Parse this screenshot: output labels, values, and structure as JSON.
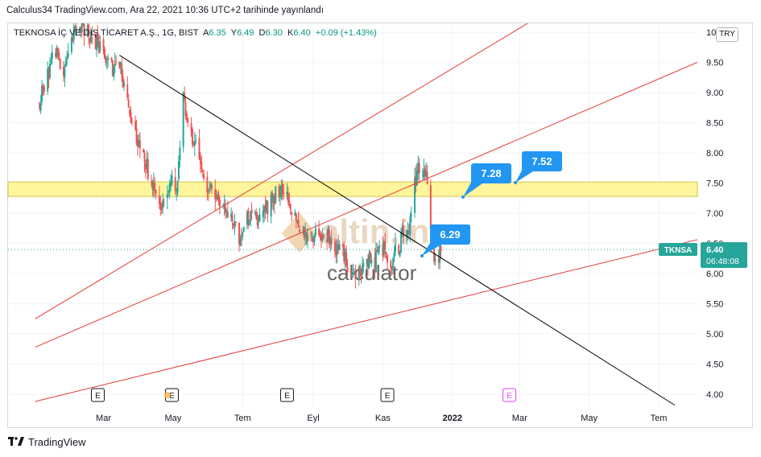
{
  "header": {
    "publish_line": "Calculus34 TradingView.com, Ara 22, 2021 10:36 UTC+2 tarihinde yayınlandı"
  },
  "legend": {
    "symbol": "TEKNOSA İÇ VE DIŞ TİCARET A.Ş., 1G, BIST",
    "open_key": "A",
    "open_val": "6.35",
    "high_key": "Y",
    "high_val": "6.49",
    "low_key": "D",
    "low_val": "6.30",
    "close_key": "K",
    "close_val": "6.40",
    "change": "+0.09 (+1.43%)"
  },
  "currency": "TRY",
  "price_tag": {
    "ticker": "TKNSA",
    "price": "6.40",
    "countdown": "06:48:08"
  },
  "callouts": [
    {
      "label": "7.28",
      "value": 7.28
    },
    {
      "label": "7.52",
      "value": 7.52
    },
    {
      "label": "6.29",
      "value": 6.29
    }
  ],
  "watermark": {
    "top": "altin.in",
    "bottom": "calculator"
  },
  "footer": {
    "brand": "TradingView"
  },
  "colors": {
    "up": "#26a69a",
    "down": "#ef5350",
    "trend_red": "#e53935",
    "trend_black": "#000000",
    "zone_fill": "#fff59d",
    "callout": "#2196f3",
    "price_tag": "#26a69a"
  },
  "chart_data": {
    "type": "candlestick",
    "title": "TEKNOSA İÇ VE DIŞ TİCARET A.Ş., 1G, BIST",
    "x_ticks": [
      "Mar",
      "May",
      "Tem",
      "Eyl",
      "Kas",
      "2022",
      "Mar",
      "May",
      "Tem"
    ],
    "y_ticks": [
      "4.00",
      "4.50",
      "5.00",
      "5.50",
      "6.00",
      "6.50",
      "7.00",
      "7.50",
      "8.00",
      "8.50",
      "9.00",
      "9.50",
      "10"
    ],
    "ylim": [
      3.8,
      10.15
    ],
    "last_price": 6.4,
    "resistance_zone": [
      7.28,
      7.52
    ],
    "event_markers": [
      "E",
      "E",
      "E",
      "E",
      "E"
    ],
    "price_path": [
      [
        "2021-01-04",
        8.8
      ],
      [
        "2021-01-10",
        9.3
      ],
      [
        "2021-01-18",
        9.7
      ],
      [
        "2021-01-24",
        9.2
      ],
      [
        "2021-02-01",
        9.9
      ],
      [
        "2021-02-10",
        10.1
      ],
      [
        "2021-02-20",
        9.9
      ],
      [
        "2021-02-28",
        9.7
      ],
      [
        "2021-03-06",
        9.5
      ],
      [
        "2021-03-15",
        9.4
      ],
      [
        "2021-03-25",
        8.6
      ],
      [
        "2021-04-05",
        8.0
      ],
      [
        "2021-04-12",
        7.5
      ],
      [
        "2021-04-20",
        7.0
      ],
      [
        "2021-04-28",
        7.5
      ],
      [
        "2021-05-04",
        7.4
      ],
      [
        "2021-05-10",
        8.9
      ],
      [
        "2021-05-18",
        8.3
      ],
      [
        "2021-05-28",
        7.6
      ],
      [
        "2021-06-08",
        7.3
      ],
      [
        "2021-06-20",
        6.9
      ],
      [
        "2021-06-28",
        6.6
      ],
      [
        "2021-07-05",
        6.9
      ],
      [
        "2021-07-15",
        6.9
      ],
      [
        "2021-07-25",
        7.2
      ],
      [
        "2021-08-05",
        7.4
      ],
      [
        "2021-08-15",
        6.9
      ],
      [
        "2021-08-22",
        6.7
      ],
      [
        "2021-09-01",
        6.6
      ],
      [
        "2021-09-10",
        6.7
      ],
      [
        "2021-09-20",
        6.5
      ],
      [
        "2021-09-28",
        6.3
      ],
      [
        "2021-10-05",
        5.95
      ],
      [
        "2021-10-12",
        6.0
      ],
      [
        "2021-10-18",
        6.2
      ],
      [
        "2021-10-25",
        6.2
      ],
      [
        "2021-11-01",
        6.4
      ],
      [
        "2021-11-08",
        6.2
      ],
      [
        "2021-11-16",
        6.5
      ],
      [
        "2021-11-24",
        6.8
      ],
      [
        "2021-11-30",
        7.6
      ],
      [
        "2021-12-06",
        7.8
      ],
      [
        "2021-12-10",
        7.5
      ],
      [
        "2021-12-14",
        6.6
      ],
      [
        "2021-12-17",
        6.2
      ],
      [
        "2021-12-22",
        6.4
      ]
    ],
    "trend_lines": [
      {
        "color": "red",
        "from": [
          "2020-12-31",
          5.25
        ],
        "to": [
          "2022-03-08",
          10.15
        ]
      },
      {
        "color": "red",
        "from": [
          "2020-12-31",
          4.78
        ],
        "to": [
          "2022-08-12",
          9.57
        ]
      },
      {
        "color": "red",
        "from": [
          "2020-12-31",
          3.88
        ],
        "to": [
          "2022-08-12",
          6.6
        ]
      },
      {
        "color": "black",
        "from": [
          "2021-03-15",
          9.62
        ],
        "to": [
          "2022-07-15",
          3.82
        ]
      }
    ]
  }
}
